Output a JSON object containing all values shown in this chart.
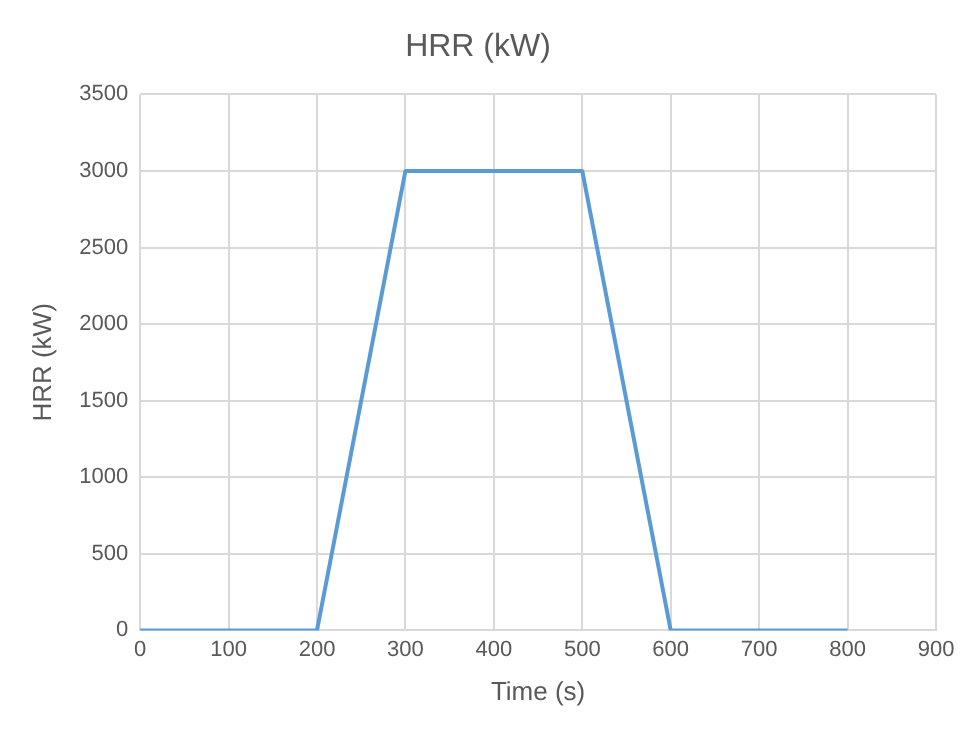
{
  "chart_data": {
    "type": "line",
    "title": "HRR (kW)",
    "xlabel": "Time (s)",
    "ylabel": "HRR (kW)",
    "x": [
      0,
      200,
      300,
      500,
      600,
      800
    ],
    "series": [
      {
        "color": "#5b9bd5",
        "values": [
          0,
          0,
          3000,
          3000,
          0,
          0
        ]
      }
    ],
    "xlim": [
      0,
      900
    ],
    "xticks": [
      0,
      100,
      200,
      300,
      400,
      500,
      600,
      700,
      800,
      900
    ],
    "ylim": [
      0,
      3500
    ],
    "yticks": [
      0,
      500,
      1000,
      1500,
      2000,
      2500,
      3000,
      3500
    ],
    "grid": true,
    "legend": false,
    "marker": "none",
    "line_style": "solid"
  }
}
